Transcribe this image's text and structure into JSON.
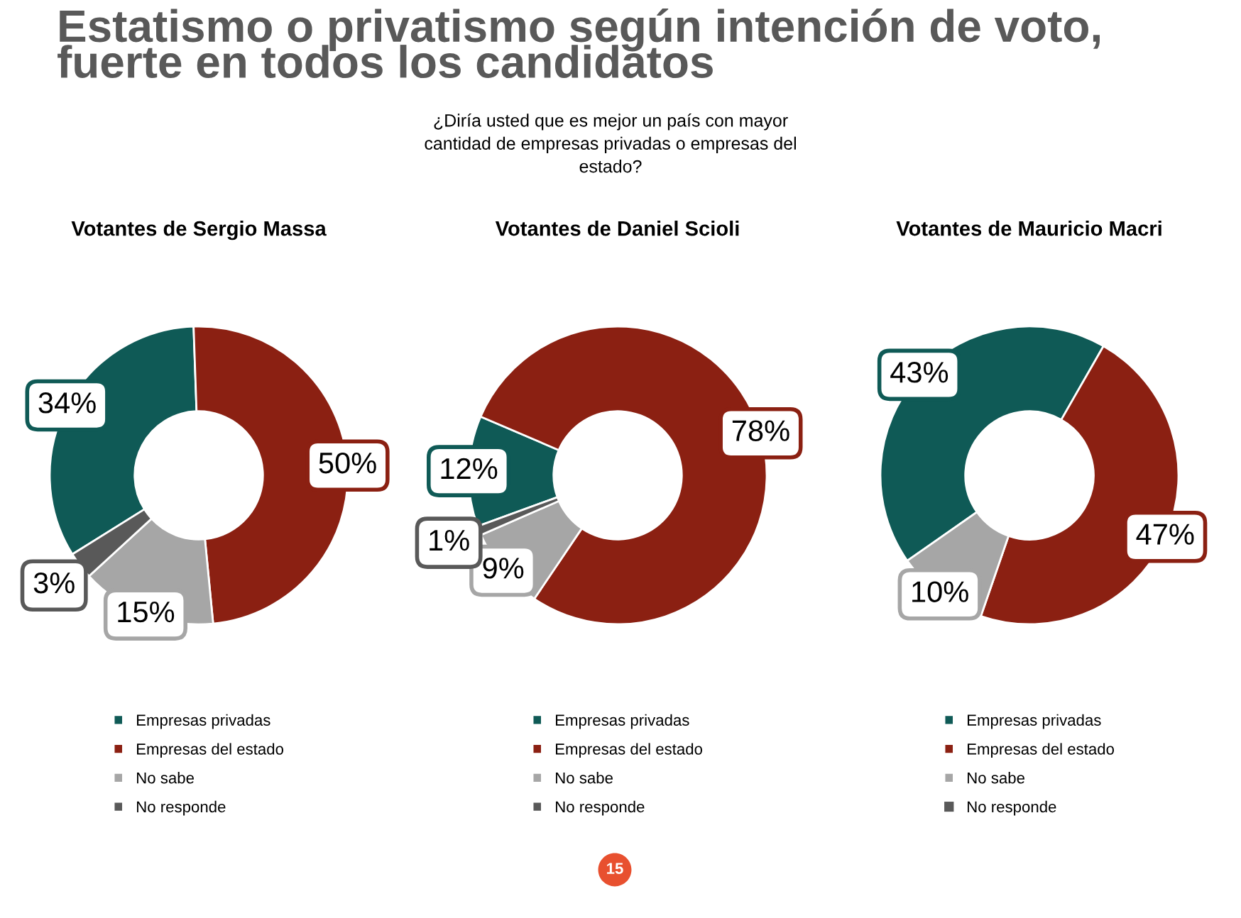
{
  "chart_data": [
    {
      "type": "donut",
      "title": "Votantes de Sergio Massa",
      "categories": [
        "Empresas privadas",
        "Empresas del estado",
        "No sabe",
        "No responde"
      ],
      "values": [
        34,
        50,
        15,
        3
      ],
      "value_labels": [
        "34%",
        "50%",
        "15%",
        "3%"
      ],
      "colors": [
        "#0f5a56",
        "#8b2012",
        "#a6a6a6",
        "#595959"
      ],
      "legend": "bottom",
      "annotations": [
        "Estatismo o privatismo según intención de voto,\nfuerte en todos los candidatos",
        "¿Diría usted que es mejor un país con mayor\ncantidad de empresas privadas o empresas del\nestado?",
        "15"
      ]
    },
    {
      "type": "donut",
      "title": "Votantes de Daniel Scioli",
      "categories": [
        "Empresas privadas",
        "Empresas del estado",
        "No sabe",
        "No responde"
      ],
      "values": [
        12,
        78,
        9,
        1
      ],
      "value_labels": [
        "12%",
        "78%",
        "9%",
        "1%"
      ],
      "colors": [
        "#0f5a56",
        "#8b2012",
        "#a6a6a6",
        "#595959"
      ],
      "legend": "bottom"
    },
    {
      "type": "donut",
      "title": "Votantes de Mauricio Macri",
      "categories": [
        "Empresas privadas",
        "Empresas del estado",
        "No sabe",
        "No responde"
      ],
      "values": [
        43,
        47,
        10,
        0
      ],
      "value_labels": [
        "43%",
        "47%",
        "10%",
        null
      ],
      "colors": [
        "#0f5a56",
        "#8b2012",
        "#a6a6a6",
        "#595959"
      ],
      "legend": "bottom"
    }
  ]
}
